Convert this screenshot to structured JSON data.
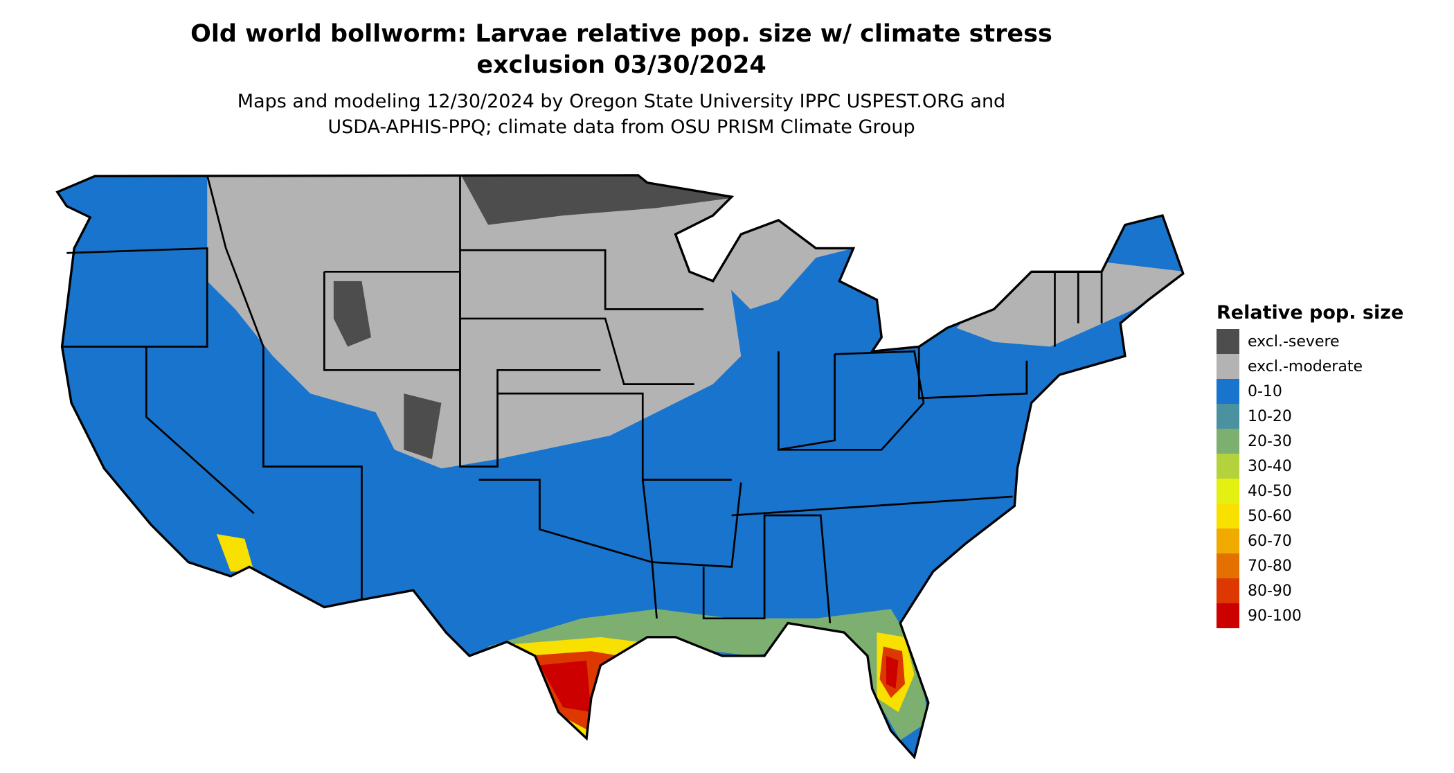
{
  "title": {
    "line1": "Old world bollworm: Larvae relative pop. size w/ climate stress",
    "line2": "exclusion 03/30/2024"
  },
  "subtitle": {
    "line1": "Maps and modeling 12/30/2024 by Oregon State University IPPC USPEST.ORG and",
    "line2": "USDA-APHIS-PPQ; climate data from OSU PRISM Climate Group"
  },
  "legend": {
    "title": "Relative pop. size",
    "items": [
      {
        "label": "excl.-severe",
        "color": "#4d4d4d"
      },
      {
        "label": "excl.-moderate",
        "color": "#b3b3b3"
      },
      {
        "label": "0-10",
        "color": "#1874cd"
      },
      {
        "label": "10-20",
        "color": "#4a92a0"
      },
      {
        "label": "20-30",
        "color": "#7db070"
      },
      {
        "label": "30-40",
        "color": "#b4d23c"
      },
      {
        "label": "40-50",
        "color": "#e4f012"
      },
      {
        "label": "50-60",
        "color": "#f8e000"
      },
      {
        "label": "60-70",
        "color": "#f0aa00"
      },
      {
        "label": "70-80",
        "color": "#e47000"
      },
      {
        "label": "80-90",
        "color": "#dc3800"
      },
      {
        "label": "90-100",
        "color": "#cd0000"
      }
    ]
  }
}
